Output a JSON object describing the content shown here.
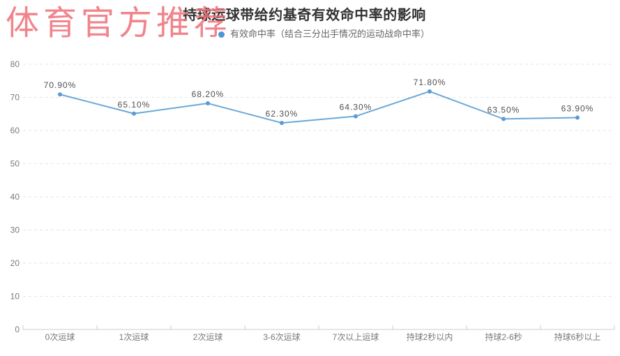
{
  "watermark": {
    "text": "体育官方推荐",
    "color": "#ef6f78"
  },
  "header": {
    "title": "持球运球带给约基奇有效命中率的影响",
    "legend_label": "有效命中率（结合三分出手情况的运动战命中率）"
  },
  "chart_data": {
    "type": "line",
    "title": "持球运球带给约基奇有效命中率的影响",
    "legend_position": "top center",
    "categories": [
      "0次运球",
      "1次运球",
      "2次运球",
      "3-6次运球",
      "7次以上运球",
      "持球2秒以内",
      "持球2-6秒",
      "持球6秒以上"
    ],
    "series": [
      {
        "name": "有效命中率（结合三分出手情况的运动战命中率）",
        "values": [
          70.9,
          65.1,
          68.2,
          62.3,
          64.3,
          71.8,
          63.5,
          63.9
        ],
        "labels": [
          "70.90%",
          "65.10%",
          "68.20%",
          "62.30%",
          "64.30%",
          "71.80%",
          "63.50%",
          "63.90%"
        ]
      }
    ],
    "xlabel": "",
    "ylabel": "",
    "ylim": [
      0,
      80
    ],
    "ytick_interval": 10,
    "ytick_labels": [
      "0",
      "10",
      "20",
      "30",
      "40",
      "50",
      "60",
      "70",
      "80"
    ],
    "grid": "horizontal dashed",
    "colors": {
      "line": "#6aa8d8",
      "marker": "#5b9bd1",
      "legend_dot": "#4b97d3",
      "grid_line": "#e4e4e4",
      "axis_line": "#cccccc",
      "tick_label": "#75797d",
      "data_label": "#4f4f4f"
    }
  }
}
